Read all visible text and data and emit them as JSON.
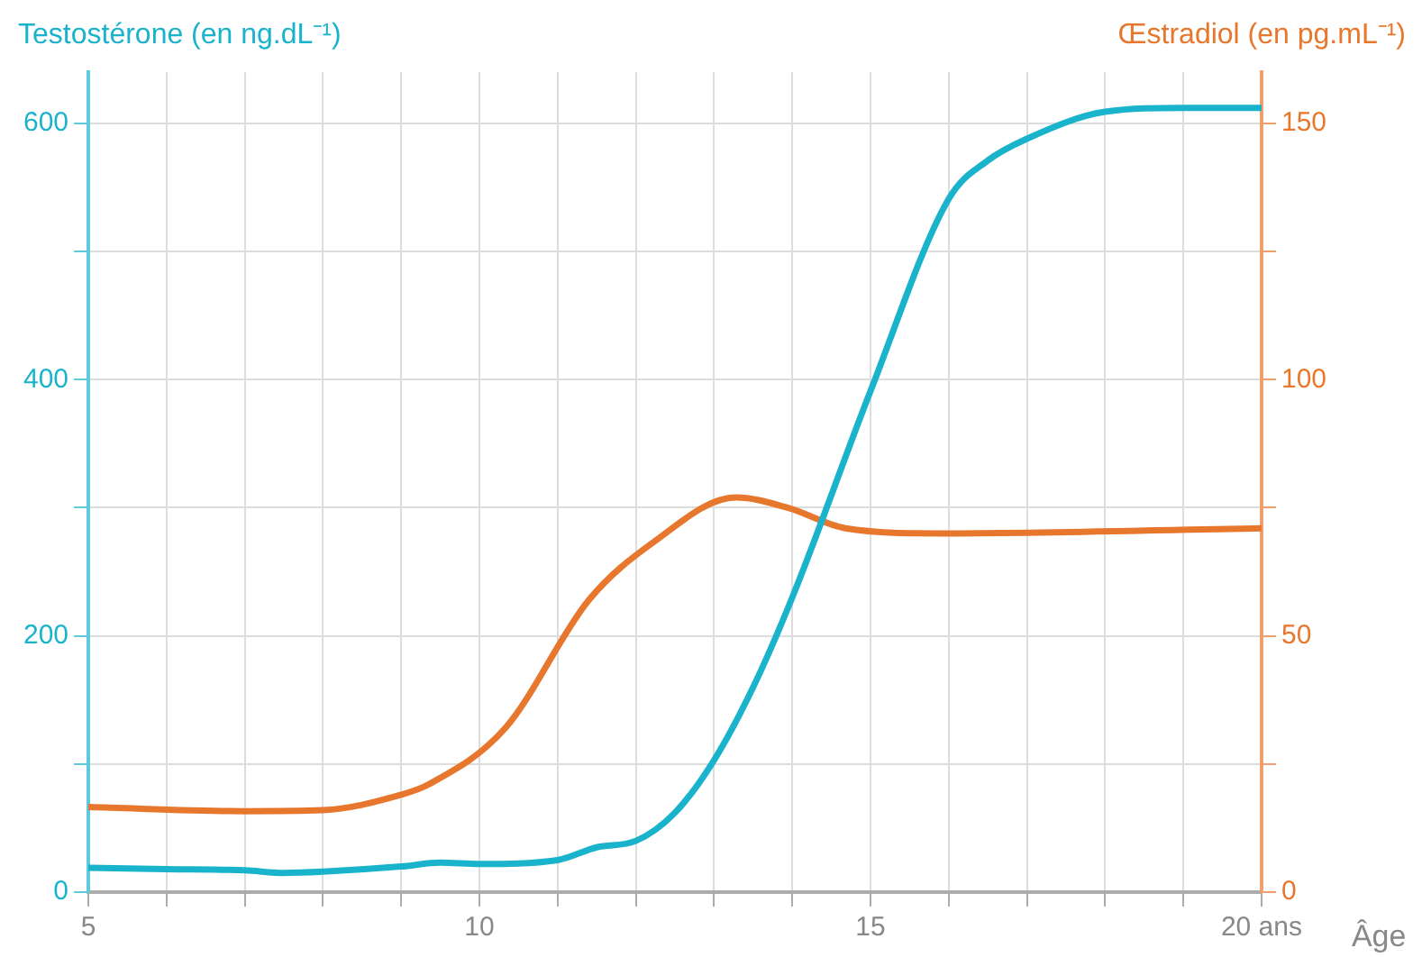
{
  "chart_data": {
    "type": "line",
    "ylabel": "Testostérone (en ng.dL⁻¹)",
    "y2label": "Œstradiol (en pg.mL⁻¹)",
    "xlabel": "Âge",
    "xlim": [
      5,
      20
    ],
    "xticks": [
      5,
      {
        "value": 6,
        "label": null
      },
      {
        "value": 7,
        "label": null
      },
      {
        "value": 8,
        "label": null
      },
      {
        "value": 9,
        "label": null
      },
      10,
      {
        "value": 11,
        "label": null
      },
      {
        "value": 12,
        "label": null
      },
      {
        "value": 13,
        "label": null
      },
      {
        "value": 14,
        "label": null
      },
      15,
      {
        "value": 16,
        "label": null
      },
      {
        "value": 17,
        "label": null
      },
      {
        "value": 18,
        "label": null
      },
      {
        "value": 19,
        "label": null
      },
      {
        "value": 20,
        "label": "20 ans"
      }
    ],
    "ylim": [
      0,
      640
    ],
    "yticks": [
      0,
      {
        "value": 100,
        "label": null
      },
      200,
      {
        "value": 300,
        "label": null
      },
      400,
      {
        "value": 500,
        "label": null
      },
      600
    ],
    "y2lim": [
      0,
      160
    ],
    "y2ticks": [
      0,
      {
        "value": 25,
        "label": null
      },
      50,
      {
        "value": 75,
        "label": null
      },
      100,
      {
        "value": 125,
        "label": null
      },
      150
    ],
    "grid": true,
    "legend": false,
    "marker": "none",
    "line_style": "solid",
    "series": [
      {
        "color": "#1ab3cc",
        "axis": "y",
        "x": [
          5,
          6,
          7,
          7.5,
          8,
          9,
          9.5,
          10,
          11,
          11.5,
          12,
          12.5,
          13,
          13.5,
          14,
          15,
          16,
          16.5,
          17,
          18,
          19,
          20
        ],
        "values": [
          19,
          18,
          17,
          15,
          16,
          20,
          23,
          22,
          25,
          35,
          40,
          62,
          103,
          160,
          230,
          391,
          541,
          571,
          588,
          609,
          612,
          612
        ]
      },
      {
        "color": "#e8772e",
        "axis": "y2",
        "x": [
          5,
          7,
          8,
          9,
          9.35,
          10.33,
          11.4,
          12.2,
          13.28,
          13.94,
          14.68,
          15.9,
          20
        ],
        "values": [
          16.6,
          15.8,
          16,
          19,
          21,
          32,
          57,
          68,
          77,
          75,
          71,
          70,
          71
        ]
      }
    ]
  }
}
